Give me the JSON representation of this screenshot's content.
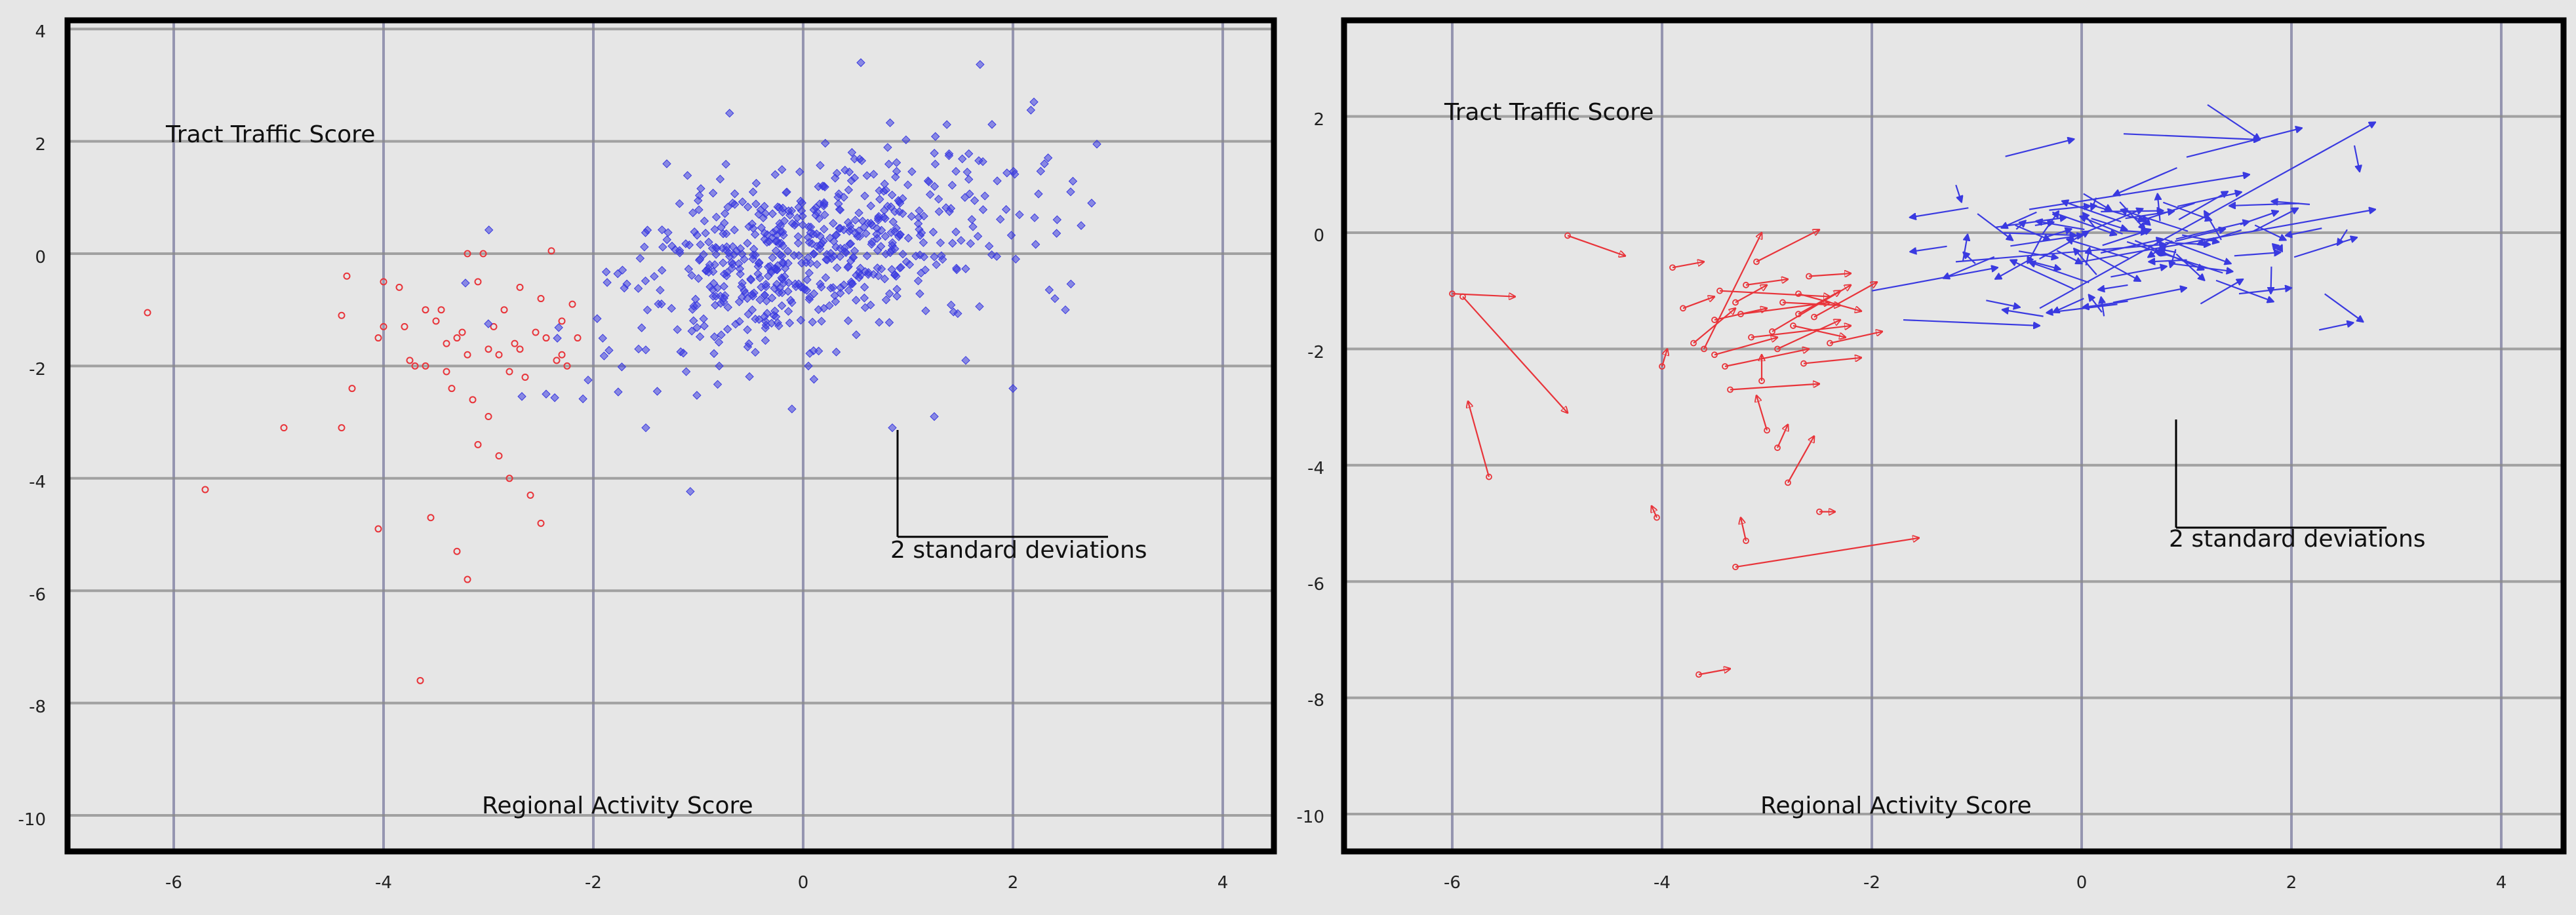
{
  "colors": {
    "red": "#e8343a",
    "blue": "#3a3ae0",
    "grid": "#7a7a9e",
    "hgrid": "#8a8a8a",
    "bg": "#e6e6e6"
  },
  "chart_data": [
    {
      "type": "scatter",
      "title": "",
      "xlabel": "Regional Activity Score",
      "ylabel": "Tract Traffic Score",
      "xlim": [
        -7,
        4.5
      ],
      "ylim": [
        -10.6,
        4.1
      ],
      "xticks": [
        "-6",
        "-4",
        "-2",
        "0",
        "2",
        "4"
      ],
      "yticks": [
        "4",
        "2",
        "0",
        "-2",
        "-4",
        "-6",
        "-8",
        "-10"
      ],
      "grid": true,
      "scale_bar_label": "2 standard deviations",
      "series": [
        {
          "marker": "circle",
          "color": "red",
          "points": [
            [
              -6.25,
              -1.05
            ],
            [
              -5.7,
              -4.2
            ],
            [
              -4.95,
              -3.1
            ],
            [
              -4.4,
              -3.1
            ],
            [
              -4.35,
              -0.4
            ],
            [
              -4.4,
              -1.1
            ],
            [
              -4.3,
              -2.4
            ],
            [
              -4.05,
              -1.5
            ],
            [
              -4.0,
              -0.5
            ],
            [
              -4.05,
              -4.9
            ],
            [
              -4.0,
              -1.3
            ],
            [
              -3.85,
              -0.6
            ],
            [
              -3.8,
              -1.3
            ],
            [
              -3.75,
              -1.9
            ],
            [
              -3.7,
              -2.0
            ],
            [
              -3.65,
              -7.6
            ],
            [
              -3.6,
              -2.0
            ],
            [
              -3.55,
              -4.7
            ],
            [
              -3.5,
              -1.2
            ],
            [
              -3.45,
              -1.0
            ],
            [
              -3.4,
              -2.1
            ],
            [
              -3.35,
              -2.4
            ],
            [
              -3.3,
              -5.3
            ],
            [
              -3.3,
              -1.5
            ],
            [
              -3.25,
              -1.4
            ],
            [
              -3.2,
              -5.8
            ],
            [
              -3.2,
              -1.8
            ],
            [
              -3.15,
              -2.6
            ],
            [
              -3.1,
              -0.5
            ],
            [
              -3.1,
              -3.4
            ],
            [
              -3.05,
              0.0
            ],
            [
              -3.0,
              -2.9
            ],
            [
              -3.0,
              -1.7
            ],
            [
              -2.95,
              -1.3
            ],
            [
              -2.9,
              -3.6
            ],
            [
              -2.85,
              -1.0
            ],
            [
              -2.8,
              -2.1
            ],
            [
              -2.8,
              -4.0
            ],
            [
              -2.75,
              -1.6
            ],
            [
              -2.7,
              -0.6
            ],
            [
              -2.7,
              -1.7
            ],
            [
              -2.65,
              -2.2
            ],
            [
              -2.6,
              -4.3
            ],
            [
              -2.55,
              -1.4
            ],
            [
              -2.5,
              -0.8
            ],
            [
              -2.45,
              -1.5
            ],
            [
              -2.4,
              0.05
            ],
            [
              -2.35,
              -1.9
            ],
            [
              -2.3,
              -1.2
            ],
            [
              -2.25,
              -2.0
            ],
            [
              -2.2,
              -0.9
            ],
            [
              -2.15,
              -1.5
            ],
            [
              -2.5,
              -4.8
            ],
            [
              -3.2,
              0.0
            ],
            [
              -3.6,
              -1.0
            ],
            [
              -2.9,
              -1.8
            ],
            [
              -3.4,
              -1.6
            ],
            [
              -2.3,
              -1.8
            ]
          ]
        },
        {
          "marker": "diamond",
          "color": "blue",
          "cloud": {
            "center": [
              0.1,
              0.05
            ],
            "sx": 0.95,
            "sy": 0.9,
            "rho": 0.45,
            "n": 620
          },
          "points": [
            [
              0.55,
              3.4
            ],
            [
              0.85,
              -3.1
            ],
            [
              1.25,
              -2.9
            ],
            [
              2.0,
              -2.4
            ],
            [
              1.55,
              -1.9
            ],
            [
              2.5,
              -1.0
            ],
            [
              2.8,
              1.95
            ],
            [
              2.75,
              0.9
            ],
            [
              2.65,
              0.5
            ],
            [
              2.2,
              2.7
            ],
            [
              2.3,
              1.6
            ],
            [
              -1.5,
              -3.1
            ],
            [
              -2.05,
              -2.25
            ],
            [
              -2.45,
              -2.5
            ],
            [
              2.4,
              -0.8
            ],
            [
              -1.3,
              1.6
            ],
            [
              1.8,
              2.3
            ],
            [
              2.55,
              1.1
            ],
            [
              -0.8,
              -2.0
            ],
            [
              0.05,
              -2.0
            ]
          ]
        }
      ]
    },
    {
      "type": "scatter",
      "title": "",
      "xlabel": "Regional Activity Score",
      "ylabel": "Tract Traffic Score",
      "xlim": [
        -7,
        4.5
      ],
      "ylim": [
        -10.6,
        3.1
      ],
      "xticks": [
        "-6",
        "-4",
        "-2",
        "0",
        "2",
        "4"
      ],
      "yticks": [
        "2",
        "0",
        "-2",
        "-4",
        "-6",
        "-8",
        "-10"
      ],
      "grid": true,
      "scale_bar_label": "2 standard deviations",
      "series": [
        {
          "marker": "arrow",
          "color": "red",
          "vectors": [
            [
              -6.0,
              -1.05,
              -5.4,
              -1.1
            ],
            [
              -5.9,
              -1.1,
              -4.9,
              -3.1
            ],
            [
              -5.65,
              -4.2,
              -5.85,
              -2.9
            ],
            [
              -4.9,
              -0.05,
              -4.35,
              -0.4
            ],
            [
              -4.05,
              -4.9,
              -4.1,
              -4.7
            ],
            [
              -4.0,
              -2.3,
              -3.95,
              -2.0
            ],
            [
              -3.9,
              -0.6,
              -3.6,
              -0.5
            ],
            [
              -3.8,
              -1.3,
              -3.5,
              -1.1
            ],
            [
              -3.7,
              -1.9,
              -3.3,
              -1.3
            ],
            [
              -3.65,
              -7.6,
              -3.35,
              -7.5
            ],
            [
              -3.6,
              -2.0,
              -3.05,
              0.0
            ],
            [
              -3.5,
              -2.1,
              -2.9,
              -1.8
            ],
            [
              -3.45,
              -1.0,
              -2.4,
              -1.1
            ],
            [
              -3.4,
              -2.3,
              -2.6,
              -2.0
            ],
            [
              -3.35,
              -2.7,
              -2.5,
              -2.6
            ],
            [
              -3.3,
              -5.75,
              -1.55,
              -5.25
            ],
            [
              -3.25,
              -1.4,
              -2.4,
              -1.2
            ],
            [
              -3.2,
              -5.3,
              -3.25,
              -4.9
            ],
            [
              -3.15,
              -1.8,
              -2.2,
              -1.6
            ],
            [
              -3.1,
              -0.5,
              -2.5,
              0.05
            ],
            [
              -3.05,
              -2.55,
              -3.05,
              -2.1
            ],
            [
              -3.0,
              -3.4,
              -3.1,
              -2.8
            ],
            [
              -2.95,
              -1.7,
              -2.2,
              -0.9
            ],
            [
              -2.9,
              -2.0,
              -2.3,
              -1.5
            ],
            [
              -2.85,
              -1.2,
              -2.3,
              -1.25
            ],
            [
              -2.8,
              -4.3,
              -2.55,
              -3.5
            ],
            [
              -2.75,
              -1.6,
              -2.25,
              -1.8
            ],
            [
              -2.7,
              -1.05,
              -2.1,
              -1.35
            ],
            [
              -2.65,
              -2.25,
              -2.1,
              -2.15
            ],
            [
              -2.6,
              -0.75,
              -2.2,
              -0.7
            ],
            [
              -2.55,
              -1.45,
              -1.95,
              -0.85
            ],
            [
              -2.5,
              -4.8,
              -2.35,
              -4.8
            ],
            [
              -2.9,
              -3.7,
              -2.8,
              -3.3
            ],
            [
              -3.5,
              -1.5,
              -3.0,
              -1.3
            ],
            [
              -3.2,
              -0.9,
              -2.8,
              -0.8
            ],
            [
              -2.4,
              -1.9,
              -1.9,
              -1.7
            ],
            [
              -3.3,
              -1.2,
              -3.0,
              -0.9
            ],
            [
              -2.7,
              -1.4,
              -2.3,
              -1.0
            ]
          ]
        },
        {
          "marker": "arrow",
          "color": "blue",
          "field": {
            "center": [
              0.5,
              -0.15
            ],
            "sx": 0.9,
            "sy": 0.55,
            "n": 95
          },
          "vectors": [
            [
              -1.7,
              -1.5,
              -0.4,
              -1.6
            ],
            [
              -2.0,
              -1.0,
              -0.8,
              -0.6
            ],
            [
              -1.2,
              -0.5,
              0.8,
              -0.2
            ],
            [
              -0.4,
              -1.3,
              2.8,
              1.9
            ],
            [
              0.0,
              -0.5,
              2.8,
              0.4
            ],
            [
              -0.5,
              0.4,
              1.6,
              1.0
            ],
            [
              1.0,
              1.3,
              2.1,
              1.8
            ],
            [
              0.4,
              1.7,
              1.7,
              1.6
            ],
            [
              1.2,
              2.2,
              1.7,
              1.6
            ],
            [
              2.6,
              1.5,
              2.65,
              1.05
            ],
            [
              0.3,
              -1.2,
              1.0,
              -0.95
            ],
            [
              1.5,
              -1.05,
              2.0,
              -0.95
            ]
          ]
        }
      ]
    }
  ]
}
